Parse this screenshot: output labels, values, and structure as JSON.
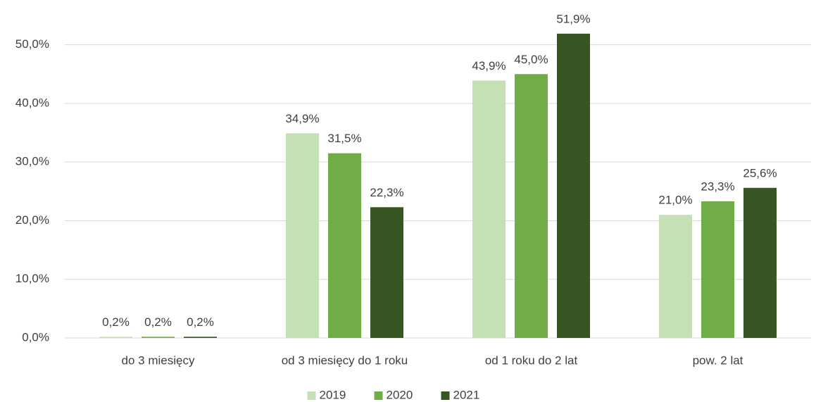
{
  "chart_data": {
    "type": "bar",
    "categories": [
      "do 3 miesięcy",
      "od 3 miesięcy do 1 roku",
      "od 1 roku do 2 lat",
      "pow. 2 lat"
    ],
    "series": [
      {
        "name": "2019",
        "color": "#c5e0b4",
        "values": [
          0.2,
          34.9,
          43.9,
          21.0
        ],
        "value_labels": [
          "0,2%",
          "34,9%",
          "43,9%",
          "21,0%"
        ]
      },
      {
        "name": "2020",
        "color": "#70ad47",
        "values": [
          0.2,
          31.5,
          45.0,
          23.3
        ],
        "value_labels": [
          "0,2%",
          "31,5%",
          "45,0%",
          "23,3%"
        ]
      },
      {
        "name": "2021",
        "color": "#375623",
        "values": [
          0.2,
          22.3,
          51.9,
          25.6
        ],
        "value_labels": [
          "0,2%",
          "22,3%",
          "51,9%",
          "25,6%"
        ]
      }
    ],
    "ylim": [
      0,
      55
    ],
    "yticks": [
      {
        "value": 0,
        "label": "0,0%"
      },
      {
        "value": 10,
        "label": "10,0%"
      },
      {
        "value": 20,
        "label": "20,0%"
      },
      {
        "value": 30,
        "label": "30,0%"
      },
      {
        "value": 40,
        "label": "40,0%"
      },
      {
        "value": 50,
        "label": "50,0%"
      }
    ],
    "grid": true,
    "legend": "bottom"
  }
}
